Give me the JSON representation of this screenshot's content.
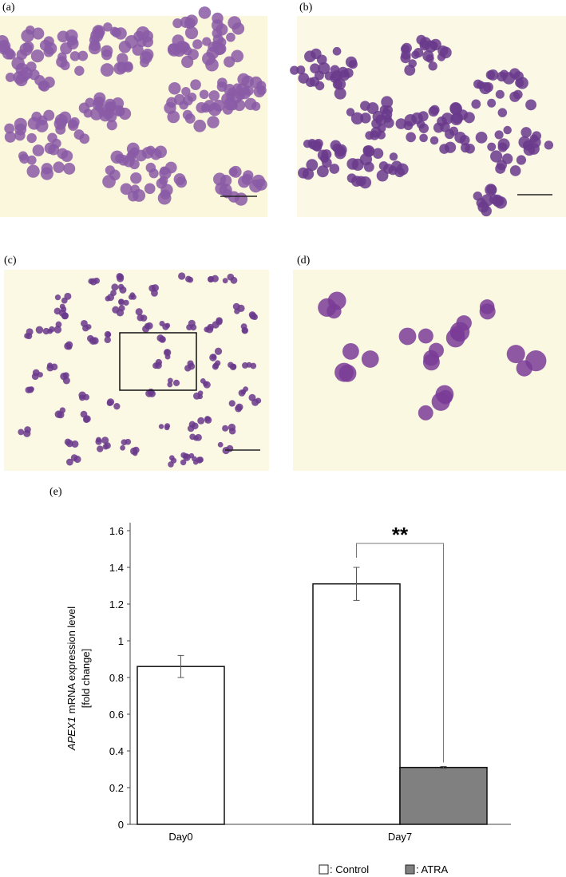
{
  "panel_labels": [
    "(a)",
    "(b)",
    "(c)",
    "(d)",
    "(e)"
  ],
  "chart_data": {
    "type": "bar",
    "ylabel": {
      "gene": "APEX1",
      "rest": "mRNA expression level",
      "unit": "[fold change]"
    },
    "categories": [
      "Day0",
      "Day7"
    ],
    "series": [
      {
        "name": ": Control",
        "color": "#ffffff",
        "values": [
          0.86,
          1.31
        ],
        "errors": [
          0.06,
          0.09
        ]
      },
      {
        "name": ": ATRA",
        "color": "#808080",
        "values": [
          null,
          0.31
        ],
        "errors": [
          null,
          0.005
        ]
      }
    ],
    "ylim": [
      0,
      1.6
    ],
    "yticks": [
      0,
      0.2,
      0.4,
      0.6,
      0.8,
      1,
      1.2,
      1.4,
      1.6
    ],
    "annotation": "**"
  }
}
